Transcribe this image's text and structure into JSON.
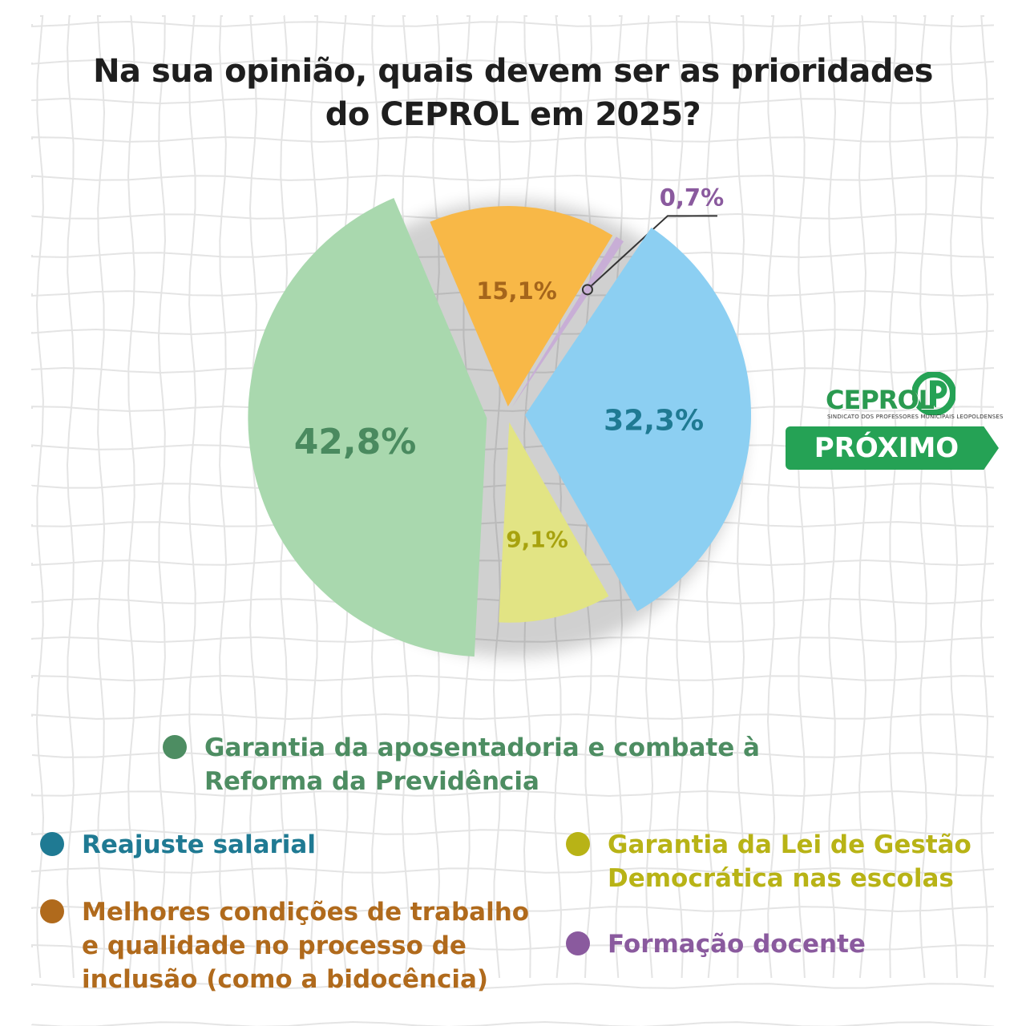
{
  "title_line1": "Na sua opinião, quais devem ser as prioridades",
  "title_line2": "do CEPROL em 2025?",
  "chart_data": {
    "type": "pie",
    "title": "Na sua opinião, quais devem ser as prioridades do CEPROL em 2025?",
    "slices": [
      {
        "label": "Garantia da aposentadoria e combate à Reforma da Previdência",
        "value": 42.8,
        "display": "42,8%",
        "color": "#a9d8ae",
        "text_color": "#4a8a5f",
        "legend_color": "#4d8d62"
      },
      {
        "label": "Melhores condições de trabalho e qualidade no processo de inclusão (como a bidocência)",
        "value": 15.1,
        "display": "15,1%",
        "color": "#f8b847",
        "text_color": "#a5651b",
        "legend_color": "#b06a1c"
      },
      {
        "label": "Formação docente",
        "value": 0.7,
        "display": "0,7%",
        "color": "#c8aed6",
        "text_color": "#8a5a9e",
        "legend_color": "#8a5a9e"
      },
      {
        "label": "Reajuste salarial",
        "value": 32.3,
        "display": "32,3%",
        "color": "#8ccff2",
        "text_color": "#1f7a93",
        "legend_color": "#1f7a93"
      },
      {
        "label": "Garantia da Lei de Gestão Democrática nas escolas",
        "value": 9.1,
        "display": "9,1%",
        "color": "#e2e484",
        "text_color": "#a7a20e",
        "legend_color": "#b8b316"
      }
    ]
  },
  "logo": {
    "name": "CEPROL",
    "subtitle": "SINDICATO DOS PROFESSORES MUNICIPAIS LEOPOLDENSES",
    "button_label": "PRÓXIMO",
    "accent": "#25a255"
  },
  "legend": {
    "previdencia": "Garantia da aposentadoria e combate à\nReforma da Previdência",
    "reajuste": "Reajuste salarial",
    "condicoes": "Melhores condições de trabalho\ne qualidade no processo de\ninclusão (como a bidocência)",
    "gestao": "Garantia da Lei de Gestão\nDemocrática nas escolas",
    "formacao": "Formação docente"
  }
}
